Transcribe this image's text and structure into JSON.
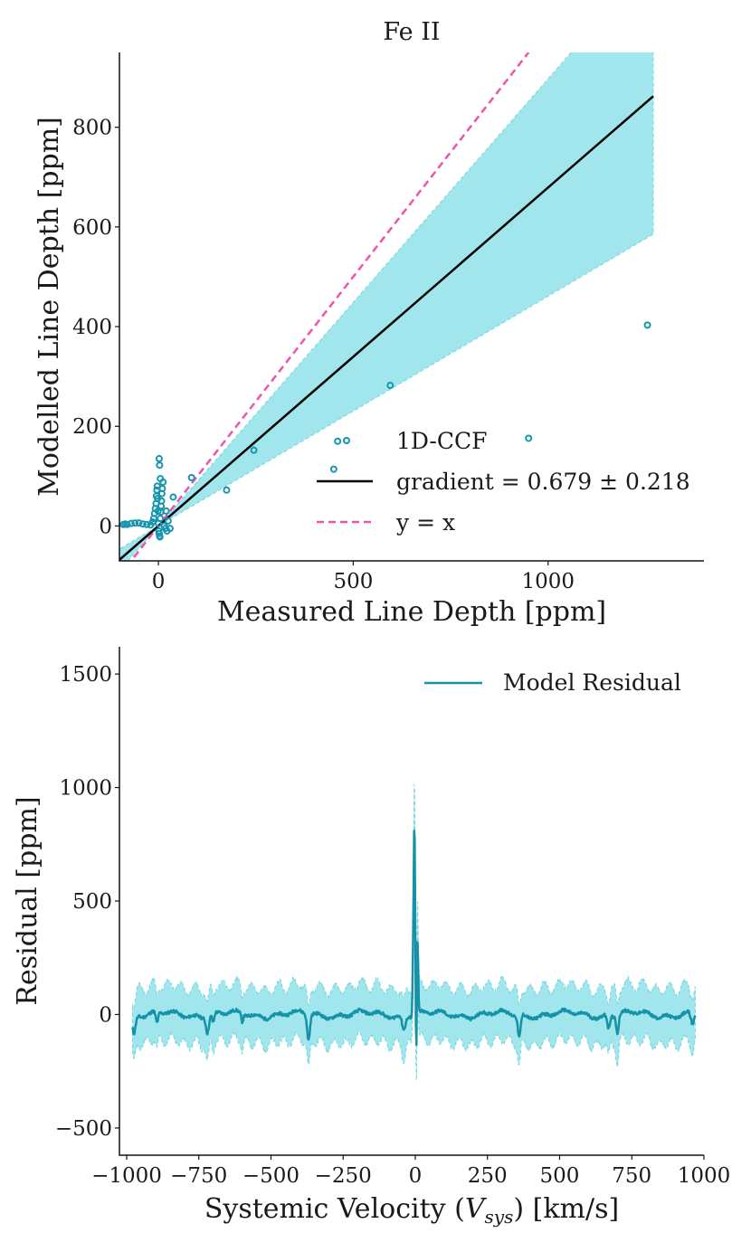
{
  "chart_data": [
    {
      "type": "scatter",
      "title": "Fe II",
      "xlabel": "Measured Line Depth [ppm]",
      "ylabel": "Modelled Line Depth [ppm]",
      "xlim": [
        -100,
        1400
      ],
      "ylim": [
        -70,
        950
      ],
      "xticks": [
        0,
        500,
        1000
      ],
      "xtick_labels": [
        "0",
        "500",
        "1000"
      ],
      "yticks": [
        0,
        200,
        400,
        600,
        800
      ],
      "ytick_labels": [
        "0",
        "200",
        "400",
        "600",
        "800"
      ],
      "points": [
        [
          -90,
          3
        ],
        [
          -85,
          4
        ],
        [
          -80,
          3
        ],
        [
          -70,
          5
        ],
        [
          -60,
          6
        ],
        [
          -50,
          6
        ],
        [
          -40,
          4
        ],
        [
          -30,
          3
        ],
        [
          -20,
          2
        ],
        [
          -15,
          8
        ],
        [
          -12,
          15
        ],
        [
          -10,
          25
        ],
        [
          -8,
          35
        ],
        [
          -6,
          45
        ],
        [
          -5,
          60
        ],
        [
          -4,
          72
        ],
        [
          -3,
          80
        ],
        [
          -2,
          55
        ],
        [
          -1,
          30
        ],
        [
          0,
          5
        ],
        [
          1,
          -10
        ],
        [
          2,
          -15
        ],
        [
          3,
          -20
        ],
        [
          4,
          -22
        ],
        [
          5,
          15
        ],
        [
          6,
          28
        ],
        [
          7,
          40
        ],
        [
          8,
          50
        ],
        [
          9,
          65
        ],
        [
          10,
          75
        ],
        [
          12,
          88
        ],
        [
          5,
          95
        ],
        [
          3,
          122
        ],
        [
          2,
          135
        ],
        [
          15,
          0
        ],
        [
          18,
          -5
        ],
        [
          20,
          30
        ],
        [
          22,
          -10
        ],
        [
          25,
          10
        ],
        [
          30,
          -5
        ],
        [
          38,
          58
        ],
        [
          85,
          97
        ],
        [
          175,
          72
        ],
        [
          245,
          152
        ],
        [
          460,
          170
        ],
        [
          450,
          114
        ],
        [
          595,
          282
        ],
        [
          950,
          176
        ],
        [
          1255,
          403
        ]
      ],
      "series": [
        {
          "name": "1D-CCF",
          "kind": "scatter",
          "color": "#1596ad"
        },
        {
          "name": "gradient = 0.679 ± 0.218",
          "kind": "fit_line",
          "slope": 0.679,
          "slope_err": 0.218,
          "x_range": [
            -100,
            1270
          ],
          "color": "#000000"
        },
        {
          "name": "y = x",
          "kind": "identity_line",
          "color": "#ee55aa"
        }
      ],
      "legend": {
        "location": "lower-right",
        "entries": [
          "1D-CCF",
          "gradient = 0.679 ± 0.218",
          "y = x"
        ]
      }
    },
    {
      "type": "line",
      "xlabel": "Systemic Velocity",
      "xlabel_symbol": "V",
      "xlabel_sub": "sys",
      "xlabel_units": "[km/s]",
      "ylabel": "Residual [ppm]",
      "xlim": [
        -1025,
        1000
      ],
      "ylim": [
        -620,
        1620
      ],
      "xticks": [
        -1000,
        -750,
        -500,
        -250,
        0,
        250,
        500,
        750,
        1000
      ],
      "xtick_labels": [
        "−1000",
        "−750",
        "−500",
        "−250",
        "0",
        "250",
        "500",
        "750",
        "1000"
      ],
      "yticks": [
        -500,
        0,
        500,
        1000,
        1500
      ],
      "ytick_labels": [
        "−500",
        "0",
        "500",
        "1000",
        "1500"
      ],
      "series": [
        {
          "name": "Model Residual",
          "color": "#1591a8",
          "band_color": "#a0e6ec",
          "band_halfwidth": 120,
          "baseline": 0,
          "x_range": [
            -980,
            970
          ],
          "features": [
            {
              "x": -975,
              "y": -80,
              "w": 8
            },
            {
              "x": -895,
              "y": -50,
              "w": 6
            },
            {
              "x": -720,
              "y": -70,
              "w": 7
            },
            {
              "x": -700,
              "y": -40,
              "w": 5
            },
            {
              "x": -600,
              "y": -35,
              "w": 5
            },
            {
              "x": -370,
              "y": -110,
              "w": 7
            },
            {
              "x": -40,
              "y": -60,
              "w": 8
            },
            {
              "x": -8,
              "y": 120,
              "w": 3
            },
            {
              "x": -3,
              "y": 850,
              "w": 4
            },
            {
              "x": 3,
              "y": -260,
              "w": 3
            },
            {
              "x": 8,
              "y": 320,
              "w": 3
            },
            {
              "x": 360,
              "y": -100,
              "w": 7
            },
            {
              "x": 670,
              "y": -60,
              "w": 6
            },
            {
              "x": 700,
              "y": -80,
              "w": 6
            },
            {
              "x": 960,
              "y": -50,
              "w": 7
            }
          ]
        }
      ],
      "legend": {
        "location": "top-right",
        "entries": [
          "Model Residual"
        ]
      }
    }
  ]
}
